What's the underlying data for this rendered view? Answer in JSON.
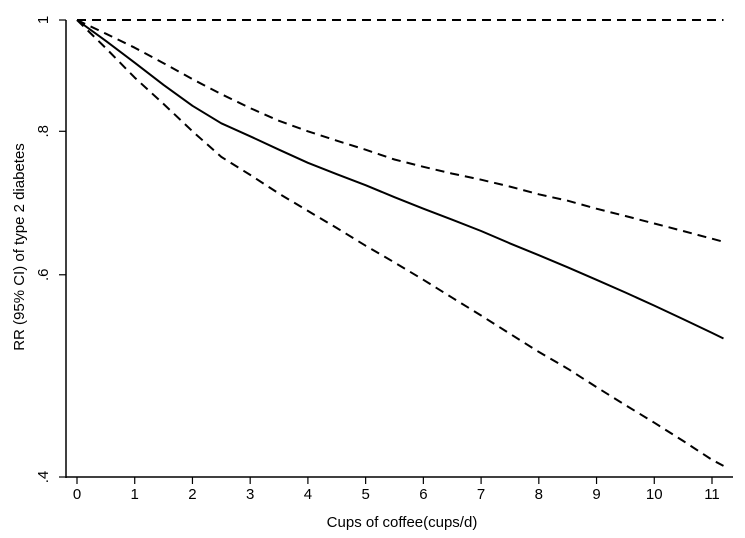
{
  "chart_data": {
    "type": "line",
    "title": "",
    "xlabel": "Cups of coffee(cups/d)",
    "ylabel": "RR (95% CI) of type 2 diabetes",
    "xlim": [
      -0.2,
      11.2
    ],
    "ylim": [
      0.4,
      1.0
    ],
    "y_scale": "log",
    "x_ticks": [
      0,
      1,
      2,
      3,
      4,
      5,
      6,
      7,
      8,
      9,
      10,
      11
    ],
    "y_ticks": [
      {
        "value": 0.4,
        "label": ".4"
      },
      {
        "value": 0.6,
        "label": ".6"
      },
      {
        "value": 0.8,
        "label": ".8"
      },
      {
        "value": 1.0,
        "label": "1"
      }
    ],
    "grid": false,
    "legend": "none",
    "series": [
      {
        "role": "estimate",
        "style": "solid",
        "color": "#000000",
        "x": [
          0,
          0.5,
          1,
          1.5,
          2,
          2.5,
          3,
          3.5,
          4,
          4.5,
          5,
          5.5,
          6,
          6.5,
          7,
          7.5,
          8,
          8.5,
          9,
          9.5,
          10,
          10.5,
          11,
          11.2
        ],
        "y": [
          1.0,
          0.959,
          0.918,
          0.878,
          0.842,
          0.813,
          0.792,
          0.771,
          0.751,
          0.734,
          0.718,
          0.701,
          0.685,
          0.67,
          0.655,
          0.639,
          0.624,
          0.609,
          0.594,
          0.579,
          0.564,
          0.549,
          0.534,
          0.528
        ]
      },
      {
        "role": "upper-ci",
        "style": "dashed",
        "color": "#000000",
        "x": [
          0,
          0.5,
          1,
          1.5,
          2,
          2.5,
          3,
          3.5,
          4,
          4.5,
          5,
          5.5,
          6,
          6.5,
          7,
          7.5,
          8,
          8.5,
          9,
          9.5,
          10,
          10.5,
          11,
          11.2
        ],
        "y": [
          1.0,
          0.973,
          0.946,
          0.917,
          0.888,
          0.862,
          0.838,
          0.817,
          0.8,
          0.785,
          0.771,
          0.756,
          0.745,
          0.735,
          0.726,
          0.716,
          0.705,
          0.696,
          0.685,
          0.675,
          0.665,
          0.655,
          0.645,
          0.641
        ]
      },
      {
        "role": "lower-ci",
        "style": "dashed",
        "color": "#000000",
        "x": [
          0,
          0.5,
          1,
          1.5,
          2,
          2.5,
          3,
          3.5,
          4,
          4.5,
          5,
          5.5,
          6,
          6.5,
          7,
          7.5,
          8,
          8.5,
          9,
          9.5,
          10,
          10.5,
          11,
          11.2
        ],
        "y": [
          1.0,
          0.945,
          0.891,
          0.845,
          0.8,
          0.76,
          0.733,
          0.706,
          0.682,
          0.659,
          0.636,
          0.615,
          0.594,
          0.573,
          0.553,
          0.533,
          0.514,
          0.497,
          0.479,
          0.462,
          0.446,
          0.43,
          0.414,
          0.409
        ]
      },
      {
        "role": "reference",
        "style": "dashed",
        "color": "#000000",
        "x": [
          0,
          11.2
        ],
        "y": [
          1.0,
          1.0
        ]
      }
    ]
  }
}
